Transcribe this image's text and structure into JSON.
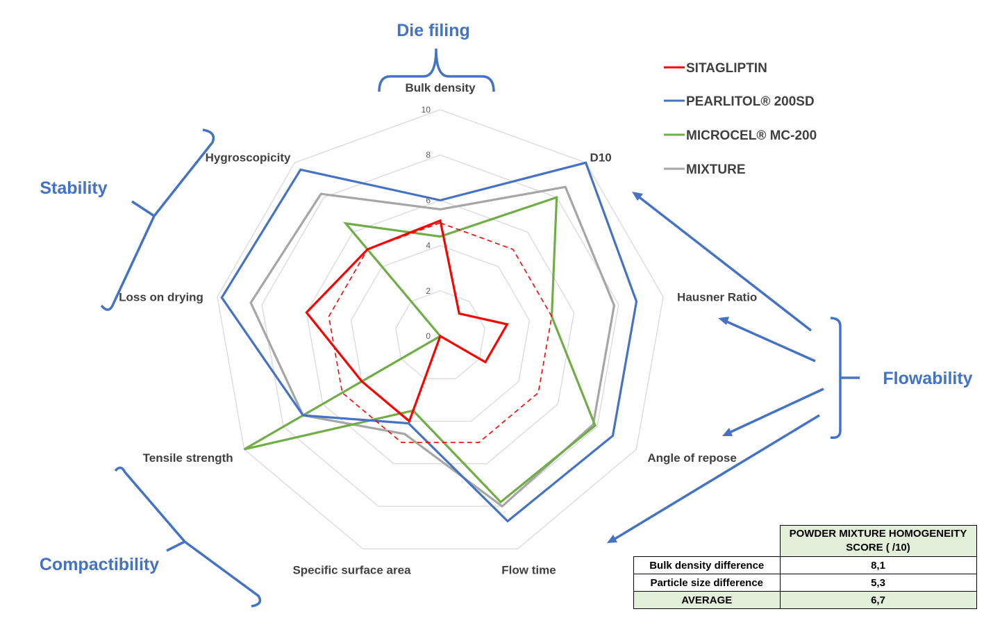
{
  "chart_data": {
    "type": "radar",
    "axes": [
      "Bulk density",
      "D10",
      "Hausner Ratio",
      "Angle of repose",
      "Flow time",
      "Specific surface area",
      "Tensile strength",
      "Loss on drying",
      "Hygroscopicity"
    ],
    "rmax": 10,
    "ticks": [
      "0",
      "2",
      "4",
      "6",
      "8",
      "10"
    ],
    "gridlines": true,
    "series": [
      {
        "name": "SITAGLIPTIN",
        "color": "#ff0000",
        "style": "solid",
        "values": [
          5.1,
          1.3,
          3.0,
          2.3,
          0.0,
          4.0,
          4.0,
          6.0,
          5.0
        ]
      },
      {
        "name": "",
        "color": "#ff0000",
        "style": "dashed",
        "values": [
          5.0,
          5.0,
          5.0,
          5.0,
          5.0,
          5.0,
          5.0,
          5.0,
          5.0
        ]
      },
      {
        "name": "PEARLITOL® 200SD",
        "color": "#4472c4",
        "style": "solid",
        "values": [
          6.0,
          10.0,
          8.8,
          8.8,
          8.7,
          4.1,
          7.0,
          9.8,
          9.6
        ]
      },
      {
        "name": "MICROCEL® MC-200",
        "color": "#70ad47",
        "style": "solid",
        "values": [
          4.4,
          8.0,
          5.0,
          7.9,
          7.8,
          3.5,
          10.0,
          0.0,
          6.5
        ]
      },
      {
        "name": "MIXTURE",
        "color": "#a6a6a6",
        "style": "solid",
        "values": [
          5.6,
          8.6,
          7.8,
          7.8,
          8.0,
          4.6,
          7.0,
          8.5,
          8.2
        ]
      }
    ],
    "legend": "top-right"
  },
  "groups": [
    "Die filing",
    "Stability",
    "Flowability",
    "Compactibility"
  ],
  "accent_color": "#4472c4",
  "score_table": {
    "header": "POWDER MIXTURE HOMOGENEITY SCORE ( /10)",
    "rows": [
      {
        "label": "Bulk density difference",
        "value": "8,1"
      },
      {
        "label": "Particle size difference",
        "value": "5,3"
      },
      {
        "label": "AVERAGE",
        "value": "6,7"
      }
    ],
    "highlight_color": "#e2efd9"
  }
}
